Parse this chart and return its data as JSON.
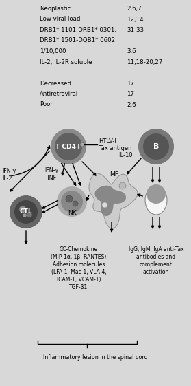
{
  "bg_color": "#d8d8d8",
  "white_bg": "#ffffff",
  "table_rows": [
    {
      "text": "Neoplastic",
      "ref": "2,6,7"
    },
    {
      "text": "Low viral load",
      "ref": "12,14"
    },
    {
      "text": "DRB1* 1101-DRB1* 0301,",
      "ref": "31-33"
    },
    {
      "text": "DRB1* 1501-DQB1* 0602",
      "ref": ""
    },
    {
      "text": "1/10,000",
      "ref": "3,6"
    },
    {
      "text": "IL-2, IL-2R soluble",
      "ref": "11,18-20,27"
    },
    {
      "text": "",
      "ref": ""
    },
    {
      "text": "Decreased",
      "ref": "17"
    },
    {
      "text": "Antiretroviral",
      "ref": "17"
    },
    {
      "text": "Poor",
      "ref": "2,6"
    }
  ],
  "diagram": {
    "tcd4_label": "T CD4+",
    "htlv_label": "HTLV-I",
    "tax_label": "Tax antigen",
    "ifng_il2_label": "IFN-γ\nIL-2",
    "ifng_tnf_label": "IFN-γ\nTNF",
    "il10_label": "IL-10",
    "b_label": "B",
    "mf_label": "MF",
    "nk_label": "NK",
    "ctl_label": "CTL",
    "cc_label": "CC-Chemokine\n(MIP-1α, 1β, RANTES)\nAdhesion molecules\n(LFA-1, Mac-1, VLA-4,\nICAM-1, VCAM-1)\nTGF-β1",
    "igg_label": "IgG, IgM, IgA anti-Tax\nantibodies and\ncomplement\nactivation",
    "bottom_label": "Inflammatory lesion in the spinal cord"
  }
}
